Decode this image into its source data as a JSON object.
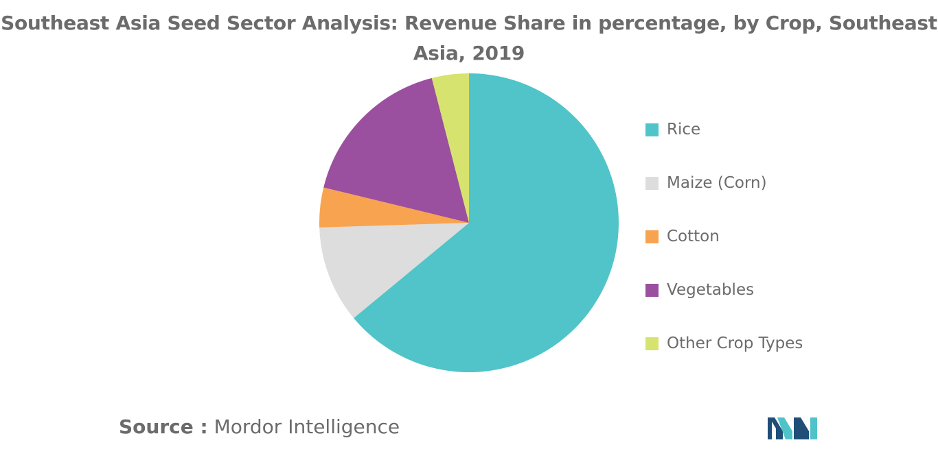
{
  "chart_data": {
    "type": "pie",
    "title": "Southeast Asia Seed Sector Analysis: Revenue Share in percentage, by Crop, Southeast Asia, 2019",
    "title_lines": [
      "Southeast Asia Seed Sector Analysis: Revenue Share in percentage, by Crop, Southeast",
      "Asia, 2019"
    ],
    "categories": [
      "Rice",
      "Maize (Corn)",
      "Cotton",
      "Vegetables",
      "Other Crop Types"
    ],
    "values": [
      64,
      10.5,
      4.3,
      17.2,
      4
    ],
    "colors": [
      "#50c4c9",
      "#dddddd",
      "#f8a350",
      "#9b4f9f",
      "#d6e36f"
    ],
    "start_angle": "12 o'clock",
    "direction": "clockwise",
    "legend_position": "right"
  },
  "footer": {
    "source_prefix": "Source :",
    "source_name": "Mordor Intelligence"
  },
  "logo": {
    "icon": "mordor-intelligence-logo",
    "colors": [
      "#1f4e79",
      "#4fc3c9"
    ]
  }
}
